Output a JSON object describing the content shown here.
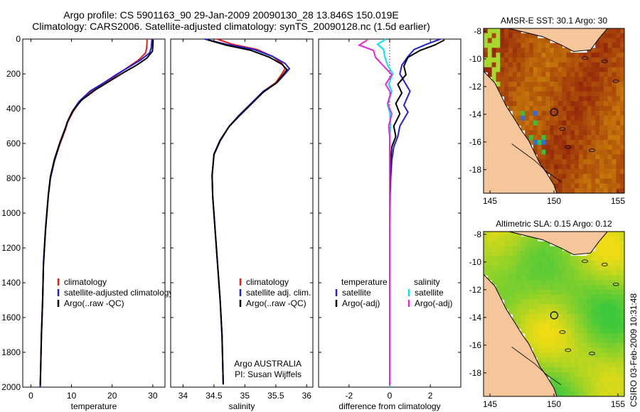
{
  "header": {
    "title_line1": "Argo profile: CS 5901163_90 29-Jan-2009 20090130_28 13.846S 150.019E",
    "title_line2": "Climatology: CARS2006. Satellite-adjusted climatology: synTS_20090128.nc (1.5d earlier)"
  },
  "side_label": "CSIRO 03-Feb-2009 10:31:48",
  "colors": {
    "red": "#e41a1c",
    "blue": "#1f1fd6",
    "black": "#000000",
    "cyan": "#00e5ee",
    "magenta": "#ee22dd"
  },
  "chart_data": [
    {
      "type": "line",
      "name": "temperature-profile",
      "xlabel": "temperature",
      "xlim": [
        -2,
        33
      ],
      "ylim": [
        0,
        2000
      ],
      "xticks": [
        "0",
        "10",
        "20",
        "30"
      ],
      "yticks": [
        "0",
        "200",
        "400",
        "600",
        "800",
        "1000",
        "1200",
        "1400",
        "1600",
        "1800",
        "2000"
      ],
      "legend": [
        "climatology",
        "satellite-adjusted climatology",
        "Argo(..raw -QC)"
      ],
      "series": [
        {
          "name": "climatology",
          "color": "red",
          "x": [
            28.6,
            28.5,
            28.2,
            26.5,
            24,
            21.5,
            18.5,
            15,
            12,
            10.3,
            9,
            8.5,
            7.2,
            5.8,
            4.8,
            4.3,
            3.6,
            3.1,
            2.9,
            2.6,
            2.3
          ],
          "y": [
            0,
            50,
            80,
            120,
            160,
            200,
            250,
            300,
            360,
            420,
            480,
            520,
            600,
            700,
            800,
            900,
            1100,
            1300,
            1500,
            1700,
            2000
          ]
        },
        {
          "name": "satellite-adjusted climatology",
          "color": "blue",
          "x": [
            29.8,
            29.6,
            29.2,
            27,
            24.2,
            21.3,
            18,
            14.5,
            11.8,
            10.1,
            8.9,
            8.4,
            7.1,
            5.8,
            4.8,
            4.3,
            3.6,
            3.1,
            2.9,
            2.6,
            2.3
          ],
          "y": [
            0,
            50,
            80,
            120,
            160,
            200,
            250,
            300,
            360,
            420,
            480,
            520,
            600,
            700,
            800,
            900,
            1100,
            1300,
            1500,
            1700,
            2000
          ]
        },
        {
          "name": "Argo(..raw -QC)",
          "color": "black",
          "x": [
            30.1,
            30,
            29.9,
            28.5,
            26,
            23,
            19.5,
            16,
            12.5,
            10.4,
            9.1,
            8.5,
            7.2,
            5.8,
            4.8,
            4.3,
            3.6,
            3.1,
            2.9,
            2.6,
            2.3
          ],
          "y": [
            5,
            40,
            70,
            110,
            150,
            190,
            240,
            290,
            350,
            410,
            470,
            510,
            590,
            690,
            790,
            890,
            1090,
            1290,
            1490,
            1690,
            1990
          ]
        }
      ]
    },
    {
      "type": "line",
      "name": "salinity-profile",
      "xlabel": "salinity",
      "xlim": [
        33.8,
        36.1
      ],
      "ylim": [
        0,
        2000
      ],
      "xticks": [
        "34",
        "34.5",
        "35",
        "35.5",
        "36"
      ],
      "legend": [
        "climatology",
        "satellite adj. clim.",
        "Argo(..raw -QC)"
      ],
      "annotation_line1": "Argo AUSTRALIA",
      "annotation_line2": "PI: Susan Wijffels",
      "series": [
        {
          "name": "climatology",
          "color": "red",
          "x": [
            34.55,
            34.8,
            35.2,
            35.45,
            35.6,
            35.65,
            35.6,
            35.5,
            35.3,
            35.1,
            34.9,
            34.75,
            34.6,
            34.5,
            34.47,
            34.48,
            34.52,
            34.56,
            34.6,
            34.63,
            34.65
          ],
          "y": [
            0,
            30,
            60,
            100,
            140,
            170,
            200,
            250,
            300,
            370,
            440,
            500,
            580,
            660,
            780,
            900,
            1100,
            1300,
            1500,
            1700,
            1980
          ]
        },
        {
          "name": "satellite adj. clim.",
          "color": "blue",
          "x": [
            34.35,
            34.7,
            35.15,
            35.45,
            35.65,
            35.72,
            35.65,
            35.52,
            35.3,
            35.1,
            34.9,
            34.75,
            34.6,
            34.5,
            34.47,
            34.48,
            34.52,
            34.56,
            34.6,
            34.63,
            34.65
          ],
          "y": [
            0,
            30,
            60,
            100,
            140,
            170,
            200,
            250,
            300,
            370,
            440,
            500,
            580,
            660,
            780,
            900,
            1100,
            1300,
            1500,
            1700,
            1980
          ]
        },
        {
          "name": "Argo(..raw -QC)",
          "color": "black",
          "x": [
            34.4,
            34.7,
            35.1,
            35.4,
            35.6,
            35.68,
            35.62,
            35.5,
            35.3,
            35.1,
            34.9,
            34.74,
            34.6,
            34.5,
            34.47,
            34.48,
            34.52,
            34.56,
            34.6,
            34.63,
            34.65
          ],
          "y": [
            5,
            35,
            65,
            105,
            145,
            175,
            205,
            255,
            305,
            375,
            445,
            505,
            585,
            665,
            785,
            905,
            1105,
            1305,
            1505,
            1705,
            1985
          ]
        }
      ]
    },
    {
      "type": "line",
      "name": "difference-profile",
      "xlabel": "difference from climatology",
      "xlim": [
        -3.5,
        3.5
      ],
      "ylim": [
        0,
        2000
      ],
      "xticks": [
        "-2",
        "0",
        "2"
      ],
      "legend_temperature": [
        "temperature",
        "satellite",
        "Argo(-adj)"
      ],
      "legend_salinity": [
        "salinity",
        "satellite",
        "Argo(-adj)"
      ],
      "series": [
        {
          "name": "temperature satellite",
          "color": "blue",
          "x": [
            2.5,
            1.8,
            1.2,
            0.9,
            0.6,
            0.5,
            0.8,
            1.0,
            0.7,
            0.9,
            0.5,
            0.4,
            0.2,
            0.1,
            0.05,
            0.02,
            0,
            0,
            0,
            0,
            0
          ],
          "y": [
            0,
            30,
            60,
            100,
            150,
            200,
            260,
            300,
            380,
            420,
            500,
            560,
            620,
            700,
            800,
            900,
            1100,
            1300,
            1500,
            1700,
            2000
          ]
        },
        {
          "name": "temperature Argo(-adj)",
          "color": "black",
          "x": [
            2.7,
            2.2,
            1.5,
            0.9,
            0.7,
            0.8,
            0.4,
            0.6,
            0.3,
            0.5,
            0.2,
            0.3,
            0.1,
            0.05,
            0.02,
            0,
            0,
            0,
            0,
            0,
            0
          ],
          "y": [
            5,
            35,
            65,
            105,
            155,
            205,
            260,
            310,
            370,
            430,
            500,
            560,
            620,
            700,
            800,
            900,
            1100,
            1300,
            1500,
            1700,
            1990
          ]
        },
        {
          "name": "salinity satellite",
          "color": "cyan",
          "x": [
            -0.2,
            -0.6,
            -0.3,
            -0.25,
            -0.1,
            0.15,
            -0.05,
            0.1,
            -0.1,
            0,
            0.05,
            0,
            0,
            0,
            0,
            0,
            0,
            0,
            0,
            0,
            0
          ],
          "y": [
            0,
            30,
            60,
            100,
            150,
            200,
            260,
            300,
            380,
            420,
            500,
            560,
            620,
            700,
            800,
            900,
            1100,
            1300,
            1500,
            1700,
            2000
          ]
        },
        {
          "name": "salinity Argo(-adj)",
          "color": "magenta",
          "x": [
            -1.1,
            -1.5,
            -0.8,
            -0.7,
            -0.3,
            0.1,
            -0.2,
            0.05,
            -0.1,
            0.1,
            -0.05,
            0,
            0,
            0,
            0,
            0,
            0,
            0,
            0,
            0,
            0
          ],
          "y": [
            5,
            35,
            65,
            105,
            155,
            205,
            260,
            310,
            370,
            430,
            500,
            560,
            620,
            700,
            800,
            900,
            1100,
            1300,
            1500,
            1700,
            1990
          ]
        }
      ]
    },
    {
      "type": "heatmap",
      "name": "sst-map",
      "title": "AMSR-E SST: 30.1 Argo: 30",
      "xlim": [
        144.5,
        155.5
      ],
      "ylim": [
        -19.7,
        -7.8
      ],
      "xticks": [
        "145",
        "150",
        "155"
      ],
      "yticks": [
        "-8",
        "-10",
        "-12",
        "-14",
        "-16",
        "-18"
      ],
      "marker": {
        "lon": 150.019,
        "lat": -13.846
      }
    },
    {
      "type": "heatmap",
      "name": "sla-map",
      "title": "Altimetric SLA: 0.15 Argo: 0.12",
      "xlim": [
        144.5,
        155.5
      ],
      "ylim": [
        -19.7,
        -7.8
      ],
      "xticks": [
        "145",
        "150",
        "155"
      ],
      "yticks": [
        "-8",
        "-10",
        "-12",
        "-14",
        "-16",
        "-18"
      ],
      "marker": {
        "lon": 150.019,
        "lat": -13.846
      }
    }
  ]
}
